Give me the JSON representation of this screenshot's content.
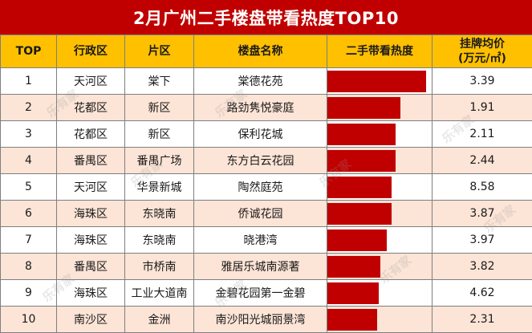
{
  "title": "2月广州二手楼盘带看热度TOP10",
  "headers": {
    "rank": "TOP",
    "district": "行政区",
    "area": "片区",
    "name": "楼盘名称",
    "heat": "二手带看热度",
    "price": "挂牌均价",
    "price_unit": "(万元/㎡)"
  },
  "rows": [
    {
      "rank": "1",
      "district": "天河区",
      "area": "棠下",
      "name": "棠德花苑",
      "price": "3.39"
    },
    {
      "rank": "2",
      "district": "花都区",
      "area": "新区",
      "name": "路劲隽悦豪庭",
      "price": "1.91"
    },
    {
      "rank": "3",
      "district": "花都区",
      "area": "新区",
      "name": "保利花城",
      "price": "2.11"
    },
    {
      "rank": "4",
      "district": "番禺区",
      "area": "番禺广场",
      "name": "东方白云花园",
      "price": "2.44"
    },
    {
      "rank": "5",
      "district": "天河区",
      "area": "华景新城",
      "name": "陶然庭苑",
      "price": "8.58"
    },
    {
      "rank": "6",
      "district": "海珠区",
      "area": "东晓南",
      "name": "侨诚花园",
      "price": "3.87"
    },
    {
      "rank": "7",
      "district": "海珠区",
      "area": "东晓南",
      "name": "晓港湾",
      "price": "3.97"
    },
    {
      "rank": "8",
      "district": "番禺区",
      "area": "市桥南",
      "name": "雅居乐城南源著",
      "price": "3.82"
    },
    {
      "rank": "9",
      "district": "海珠区",
      "area": "工业大道南",
      "name": "金碧花园第一金碧",
      "price": "4.62"
    },
    {
      "rank": "10",
      "district": "南沙区",
      "area": "金洲",
      "name": "南沙阳光城丽景湾",
      "price": "2.31"
    }
  ],
  "watermark": "乐有家",
  "colors": {
    "title_bg": "#c00000",
    "header_bg": "#ffc000",
    "stripe": "#fce4d6",
    "bar": "#c00000"
  },
  "chart_data": {
    "type": "bar",
    "orientation": "horizontal",
    "title": "2月广州二手楼盘带看热度TOP10",
    "xlabel": "二手带看热度",
    "categories": [
      "棠德花苑",
      "路劲隽悦豪庭",
      "保利花城",
      "东方白云花园",
      "陶然庭苑",
      "侨诚花园",
      "晓港湾",
      "雅居乐城南源著",
      "金碧花园第一金碧",
      "南沙阳光城丽景湾"
    ],
    "values": [
      100,
      74,
      69,
      69,
      65,
      65,
      60,
      54,
      52,
      50
    ],
    "xlim": [
      0,
      100
    ],
    "grid": false
  }
}
